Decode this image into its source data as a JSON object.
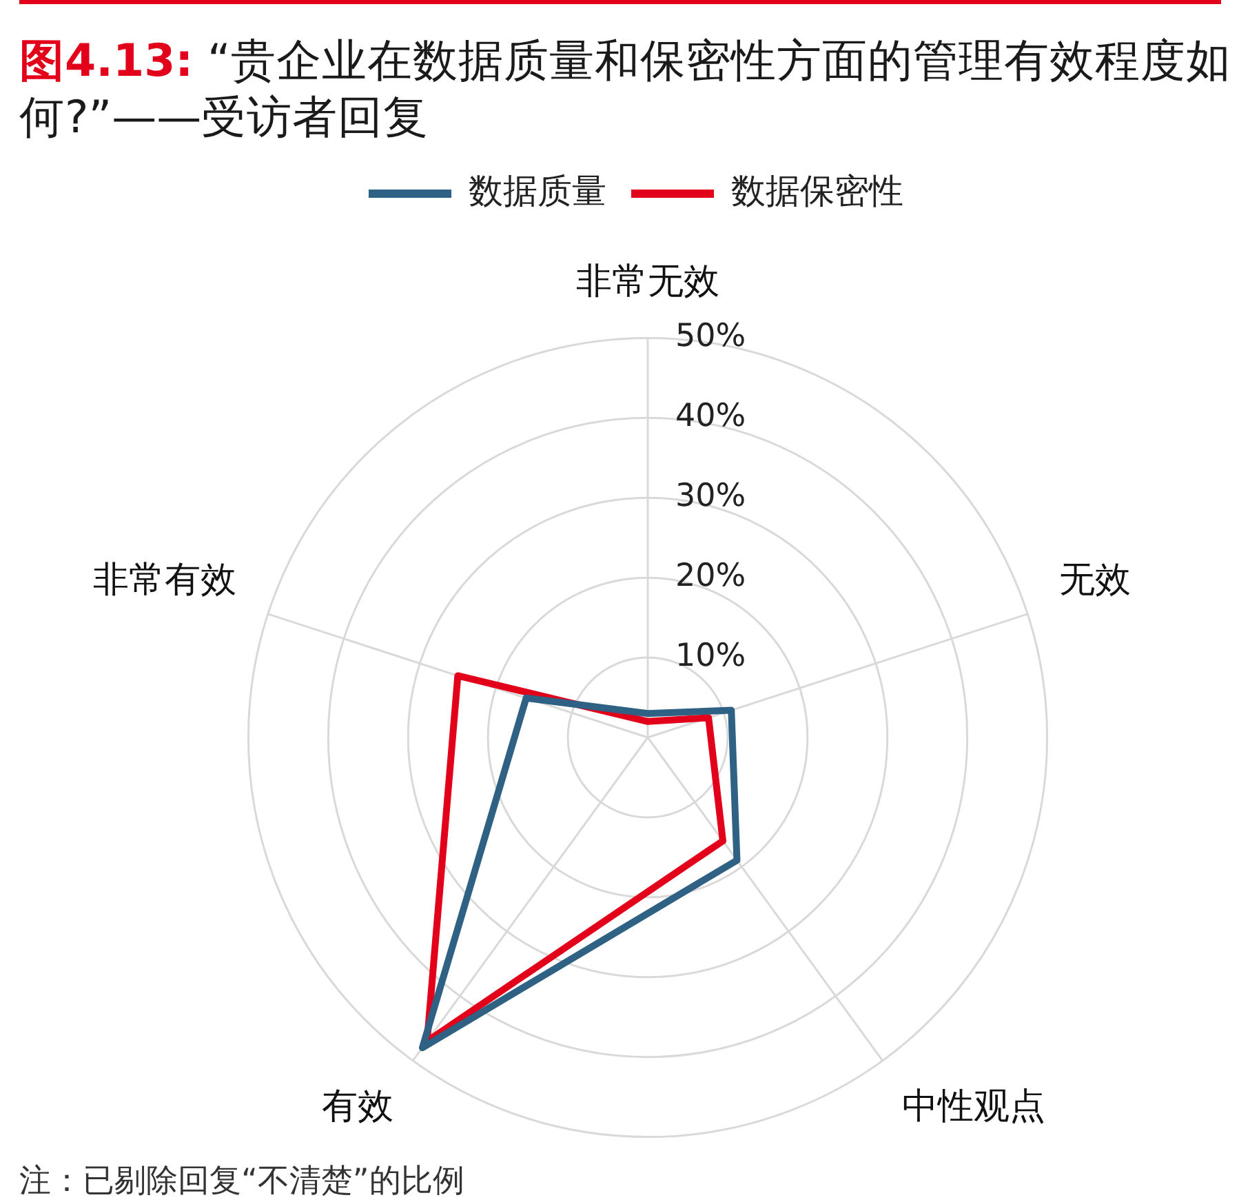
{
  "chart_data": {
    "type": "radar",
    "title": "图4.13: “贵企业在数据质量和保密性方面的管理有效程度如何?”——受访者回复",
    "categories": [
      "非常无效",
      "无效",
      "中性观点",
      "有效",
      "非常有效"
    ],
    "series": [
      {
        "name": "数据质量",
        "color": "#2e6183",
        "values": [
          3,
          11,
          19,
          48,
          16
        ]
      },
      {
        "name": "数据保密性",
        "color": "#e2001a",
        "values": [
          2,
          8,
          16,
          47,
          25
        ]
      }
    ],
    "ylim": [
      0,
      50
    ],
    "yticks": [
      {
        "value": 10,
        "label": "10%"
      },
      {
        "value": 20,
        "label": "20%"
      },
      {
        "value": 30,
        "label": "30%"
      },
      {
        "value": 40,
        "label": "40%"
      },
      {
        "value": 50,
        "label": "50%"
      }
    ],
    "grid": true,
    "legend": "top",
    "annotations": [
      "注：已剔除回复“不清楚”的比例"
    ]
  }
}
